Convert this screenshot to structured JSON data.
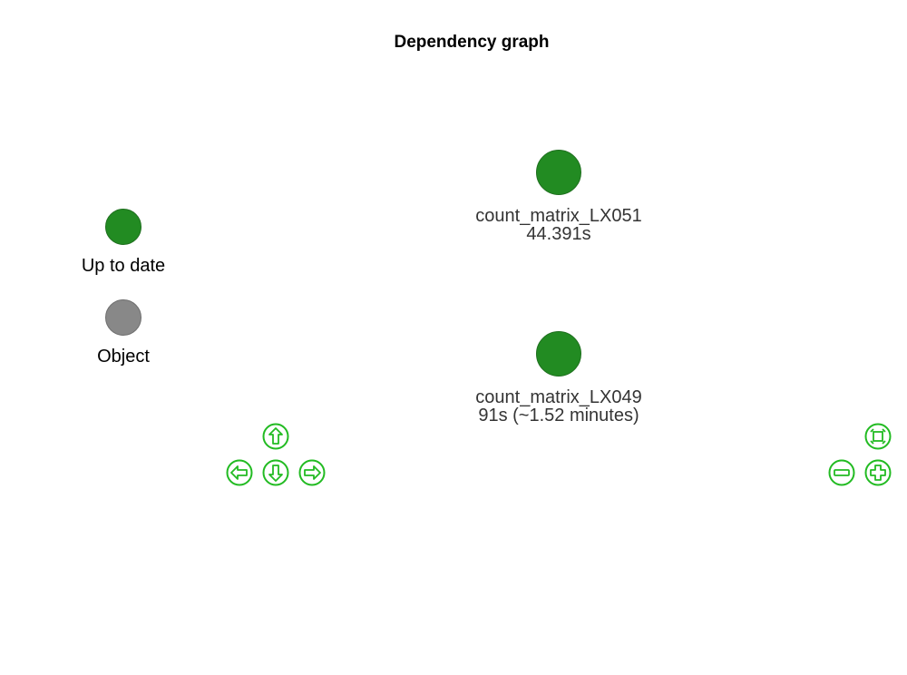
{
  "title": "Dependency graph",
  "colors": {
    "up_to_date": "#228B22",
    "object": "#888888",
    "nav": "#22bb22"
  },
  "legend": [
    {
      "label": "Up to date",
      "color": "#228B22"
    },
    {
      "label": "Object",
      "color": "#888888"
    }
  ],
  "nodes": [
    {
      "name": "count_matrix_LX051",
      "time": "44.391s",
      "status": "Up to date"
    },
    {
      "name": "count_matrix_LX049",
      "time": "91s (~1.52 minutes)",
      "status": "Up to date"
    }
  ],
  "navigation": {
    "buttons": [
      "up-arrow-icon",
      "left-arrow-icon",
      "down-arrow-icon",
      "right-arrow-icon",
      "zoom-fit-icon",
      "zoom-out-icon",
      "zoom-in-icon"
    ]
  }
}
